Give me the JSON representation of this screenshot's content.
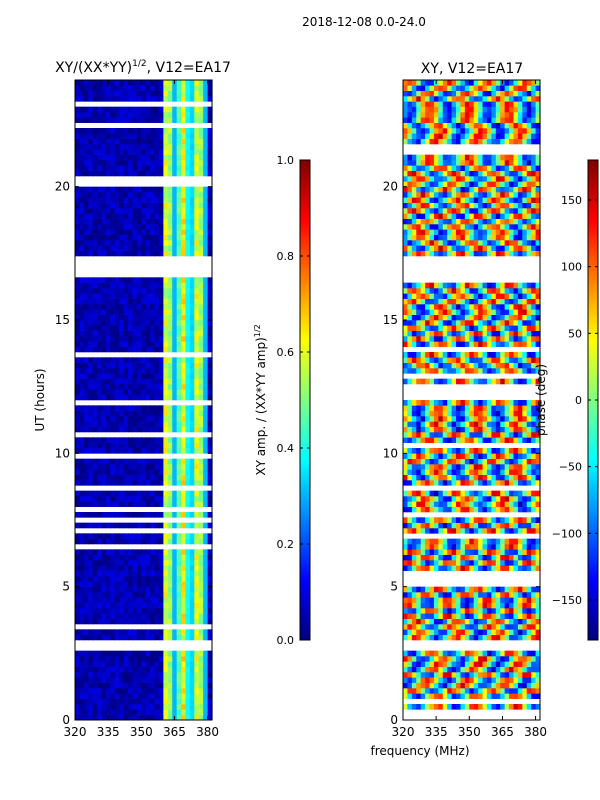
{
  "figure_title": "2018-12-08 0.0-24.0",
  "shared_xlabel": "frequency (MHz)",
  "chart_data": [
    {
      "type": "heatmap",
      "title": "XY/(XX*YY)",
      "title_exp": "1/2",
      "title_suffix": ", V12=EA17",
      "xlabel": "",
      "ylabel": "UT (hours)",
      "xlim": [
        320,
        382
      ],
      "ylim": [
        0,
        24
      ],
      "xticks": [
        320,
        335,
        350,
        365,
        380
      ],
      "yticks": [
        0,
        5,
        10,
        15,
        20
      ],
      "colorbar": {
        "label": "XY amp. / (XX*YY amp)",
        "label_exp": "1/2",
        "range": [
          0.0,
          1.0
        ],
        "ticks": [
          "0.0",
          "0.2",
          "0.4",
          "0.6",
          "0.8",
          "1.0"
        ],
        "colormap": "jet"
      },
      "description_values": {
        "background_amp": 0.05,
        "band_low_mhz": 360,
        "band_high_mhz": 380,
        "band_amp_range": [
          0.3,
          0.7
        ],
        "blank_gap_hours": [
          [
            16.7,
            17.4
          ],
          [
            2.6,
            3.0
          ],
          [
            8.6,
            8.8
          ]
        ]
      }
    },
    {
      "type": "heatmap",
      "title": "XY, V12=EA17",
      "xlabel": "",
      "ylabel": "",
      "xlim": [
        320,
        382
      ],
      "ylim": [
        0,
        24
      ],
      "xticks": [
        320,
        335,
        350,
        365,
        380
      ],
      "yticks": [
        0,
        5,
        10,
        15,
        20
      ],
      "colorbar": {
        "label": "phase (deg)",
        "range": [
          -180,
          180
        ],
        "ticks": [
          "−150",
          "−100",
          "−50",
          "0",
          "50",
          "100",
          "150"
        ],
        "colormap": "jet"
      },
      "description_values": {
        "phase_range_deg": [
          -180,
          180
        ],
        "blank_gap_hours": [
          [
            16.7,
            17.4
          ],
          [
            2.6,
            3.0
          ],
          [
            8.6,
            8.8
          ]
        ]
      }
    }
  ]
}
